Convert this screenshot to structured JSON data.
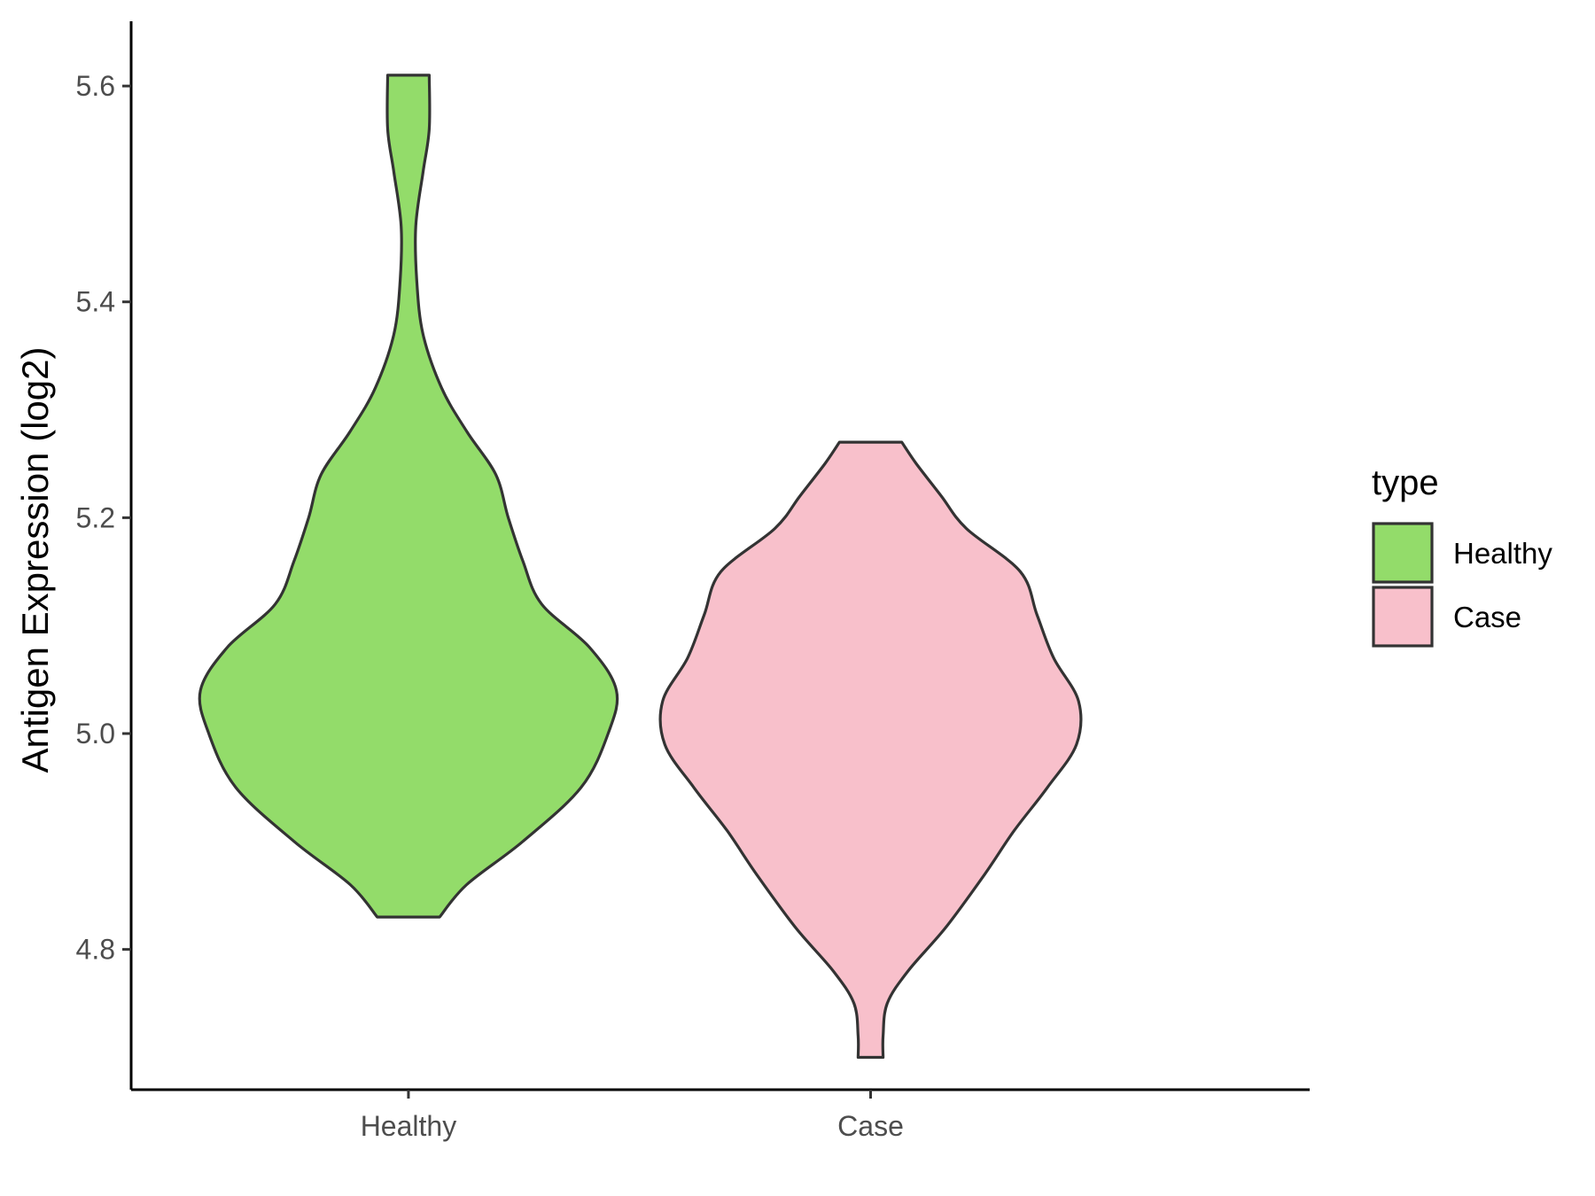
{
  "chart_data": {
    "type": "violin",
    "categories": [
      "Healthy",
      "Case"
    ],
    "ylabel": "Antigen Expression (log2)",
    "xlabel": "",
    "ylim": [
      4.67,
      5.66
    ],
    "yticks": [
      4.8,
      5.0,
      5.2,
      5.4,
      5.6
    ],
    "ytick_labels": [
      "4.8",
      "5.0",
      "5.2",
      "5.4",
      "5.6"
    ],
    "grid": false,
    "legend": {
      "title": "type",
      "position": "right",
      "entries": [
        {
          "label": "Healthy",
          "color": "#93dc6a"
        },
        {
          "label": "Case",
          "color": "#f8c0cb"
        }
      ]
    },
    "series": [
      {
        "name": "Healthy",
        "color": "#93dc6a",
        "min": 4.83,
        "max": 5.61,
        "profile": [
          [
            4.83,
            0.15
          ],
          [
            4.86,
            0.28
          ],
          [
            4.9,
            0.55
          ],
          [
            4.95,
            0.83
          ],
          [
            5.0,
            0.96
          ],
          [
            5.04,
            1.0
          ],
          [
            5.08,
            0.87
          ],
          [
            5.12,
            0.64
          ],
          [
            5.16,
            0.55
          ],
          [
            5.2,
            0.48
          ],
          [
            5.24,
            0.42
          ],
          [
            5.28,
            0.28
          ],
          [
            5.32,
            0.16
          ],
          [
            5.37,
            0.07
          ],
          [
            5.42,
            0.04
          ],
          [
            5.47,
            0.035
          ],
          [
            5.52,
            0.07
          ],
          [
            5.56,
            0.1
          ],
          [
            5.61,
            0.1
          ]
        ]
      },
      {
        "name": "Case",
        "color": "#f8c0cb",
        "min": 4.7,
        "max": 5.27,
        "profile": [
          [
            4.7,
            0.06
          ],
          [
            4.72,
            0.06
          ],
          [
            4.75,
            0.08
          ],
          [
            4.78,
            0.18
          ],
          [
            4.82,
            0.36
          ],
          [
            4.87,
            0.55
          ],
          [
            4.91,
            0.69
          ],
          [
            4.95,
            0.85
          ],
          [
            4.99,
            0.99
          ],
          [
            5.03,
            1.0
          ],
          [
            5.07,
            0.88
          ],
          [
            5.11,
            0.8
          ],
          [
            5.15,
            0.72
          ],
          [
            5.19,
            0.46
          ],
          [
            5.22,
            0.34
          ],
          [
            5.25,
            0.22
          ],
          [
            5.27,
            0.15
          ]
        ]
      }
    ]
  }
}
